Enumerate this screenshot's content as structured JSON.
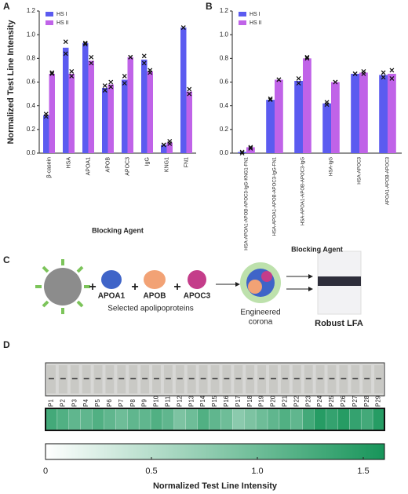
{
  "panels": [
    "A",
    "B",
    "C",
    "D"
  ],
  "chart_data": [
    {
      "type": "bar",
      "ylabel": "Normalized Test Line Intensity",
      "xlabel": "Blocking Agent",
      "categories": [
        "β-casein",
        "HSA",
        "APOA1",
        "APOB",
        "APOC3",
        "IgG",
        "KNG1",
        "FN1"
      ],
      "series": [
        {
          "name": "HS I",
          "color": "#5b5bf0",
          "values": [
            0.32,
            0.89,
            0.93,
            0.55,
            0.62,
            0.79,
            0.07,
            1.06
          ],
          "replicates": [
            [
              0.31,
              0.33
            ],
            [
              0.84,
              0.94
            ],
            [
              0.92,
              0.93
            ],
            [
              0.53,
              0.57
            ],
            [
              0.59,
              0.65
            ],
            [
              0.76,
              0.82
            ],
            [
              0.07,
              0.07
            ],
            [
              1.06,
              1.06
            ]
          ]
        },
        {
          "name": "HS II",
          "color": "#c063e8",
          "values": [
            0.67,
            0.67,
            0.78,
            0.58,
            0.81,
            0.69,
            0.09,
            0.52
          ],
          "replicates": [
            [
              0.67,
              0.68
            ],
            [
              0.65,
              0.69
            ],
            [
              0.76,
              0.81
            ],
            [
              0.56,
              0.6
            ],
            [
              0.81,
              0.81
            ],
            [
              0.68,
              0.7
            ],
            [
              0.08,
              0.1
            ],
            [
              0.5,
              0.54
            ]
          ]
        }
      ],
      "ylim": [
        0,
        1.2
      ],
      "yticks": [
        {
          "value": 0,
          "label": "0.0"
        },
        {
          "value": 0.2,
          "label": "0.2"
        },
        {
          "value": 0.4,
          "label": "0.4"
        },
        {
          "value": 0.6,
          "label": "0.6"
        },
        {
          "value": 0.8,
          "label": "0.8"
        },
        {
          "value": 1,
          "label": "1.0"
        },
        {
          "value": 1.2,
          "label": "1.2"
        }
      ],
      "legend": "upper left"
    },
    {
      "type": "bar",
      "xlabel": "Blocking Agent",
      "categories": [
        "HSA-APOA1-APOB-APOC3-IgG-KNG1-FN1",
        "HSA-APOA1-APOB-APOC3-IgG-FN1",
        "HSA-APOA1-APOB-APOC3-IgG",
        "HSA-IgG",
        "HSA-APOC3",
        "APOA1-APOB-APOC3"
      ],
      "series": [
        {
          "name": "HS I",
          "color": "#5b5bf0",
          "values": [
            0.01,
            0.45,
            0.61,
            0.42,
            0.67,
            0.66
          ],
          "replicates": [
            [
              0,
              0.01
            ],
            [
              0.45,
              0.46
            ],
            [
              0.59,
              0.63
            ],
            [
              0.41,
              0.43
            ],
            [
              0.67,
              0.67
            ],
            [
              0.64,
              0.68
            ]
          ]
        },
        {
          "name": "HS II",
          "color": "#c063e8",
          "values": [
            0.05,
            0.62,
            0.8,
            0.6,
            0.68,
            0.67
          ],
          "replicates": [
            [
              0.04,
              0.05
            ],
            [
              0.62,
              0.62
            ],
            [
              0.8,
              0.81
            ],
            [
              0.6,
              0.6
            ],
            [
              0.67,
              0.69
            ],
            [
              0.63,
              0.7
            ]
          ]
        }
      ],
      "ylim": [
        0,
        1.2
      ],
      "yticks": [
        {
          "value": 0,
          "label": "0.0"
        },
        {
          "value": 0.2,
          "label": "0.2"
        },
        {
          "value": 0.4,
          "label": "0.4"
        },
        {
          "value": 0.6,
          "label": "0.6"
        },
        {
          "value": 0.8,
          "label": "0.8"
        },
        {
          "value": 1,
          "label": "1.0"
        },
        {
          "value": 1.2,
          "label": "1.2"
        }
      ],
      "legend": "upper left"
    },
    {
      "type": "heatmap",
      "xlabel": "Normalized Test Line Intensity",
      "categories": [
        "P1",
        "P2",
        "P3",
        "P4",
        "P5",
        "P6",
        "P7",
        "P8",
        "P9",
        "P10",
        "P11",
        "P12",
        "P13",
        "P14",
        "P15",
        "P16",
        "P17",
        "P18",
        "P19",
        "P20",
        "P21",
        "P22",
        "P23",
        "P24",
        "P25",
        "P26",
        "P27",
        "P28",
        "P29"
      ],
      "values": [
        1.3,
        1.2,
        1.1,
        1.1,
        1.2,
        1.1,
        1.0,
        1.1,
        1.1,
        1.2,
        1.1,
        0.9,
        1.0,
        1.2,
        1.1,
        1.0,
        0.8,
        0.9,
        1.0,
        1.1,
        1.2,
        1.1,
        1.3,
        1.5,
        1.4,
        1.5,
        1.4,
        1.3,
        1.5
      ],
      "color": "#17955a",
      "xlim": [
        0,
        1.6
      ],
      "xticks": [
        0,
        0.5,
        {
          "value": 1,
          "label": "1.0"
        },
        1.5
      ]
    }
  ],
  "diagram": {
    "proteins": [
      "APOA1",
      "APOB",
      "APOC3"
    ],
    "proteins_label": "Selected apolipoproteins",
    "corona_label": [
      "Engineered",
      "corona"
    ],
    "result_label": "Robust LFA"
  }
}
